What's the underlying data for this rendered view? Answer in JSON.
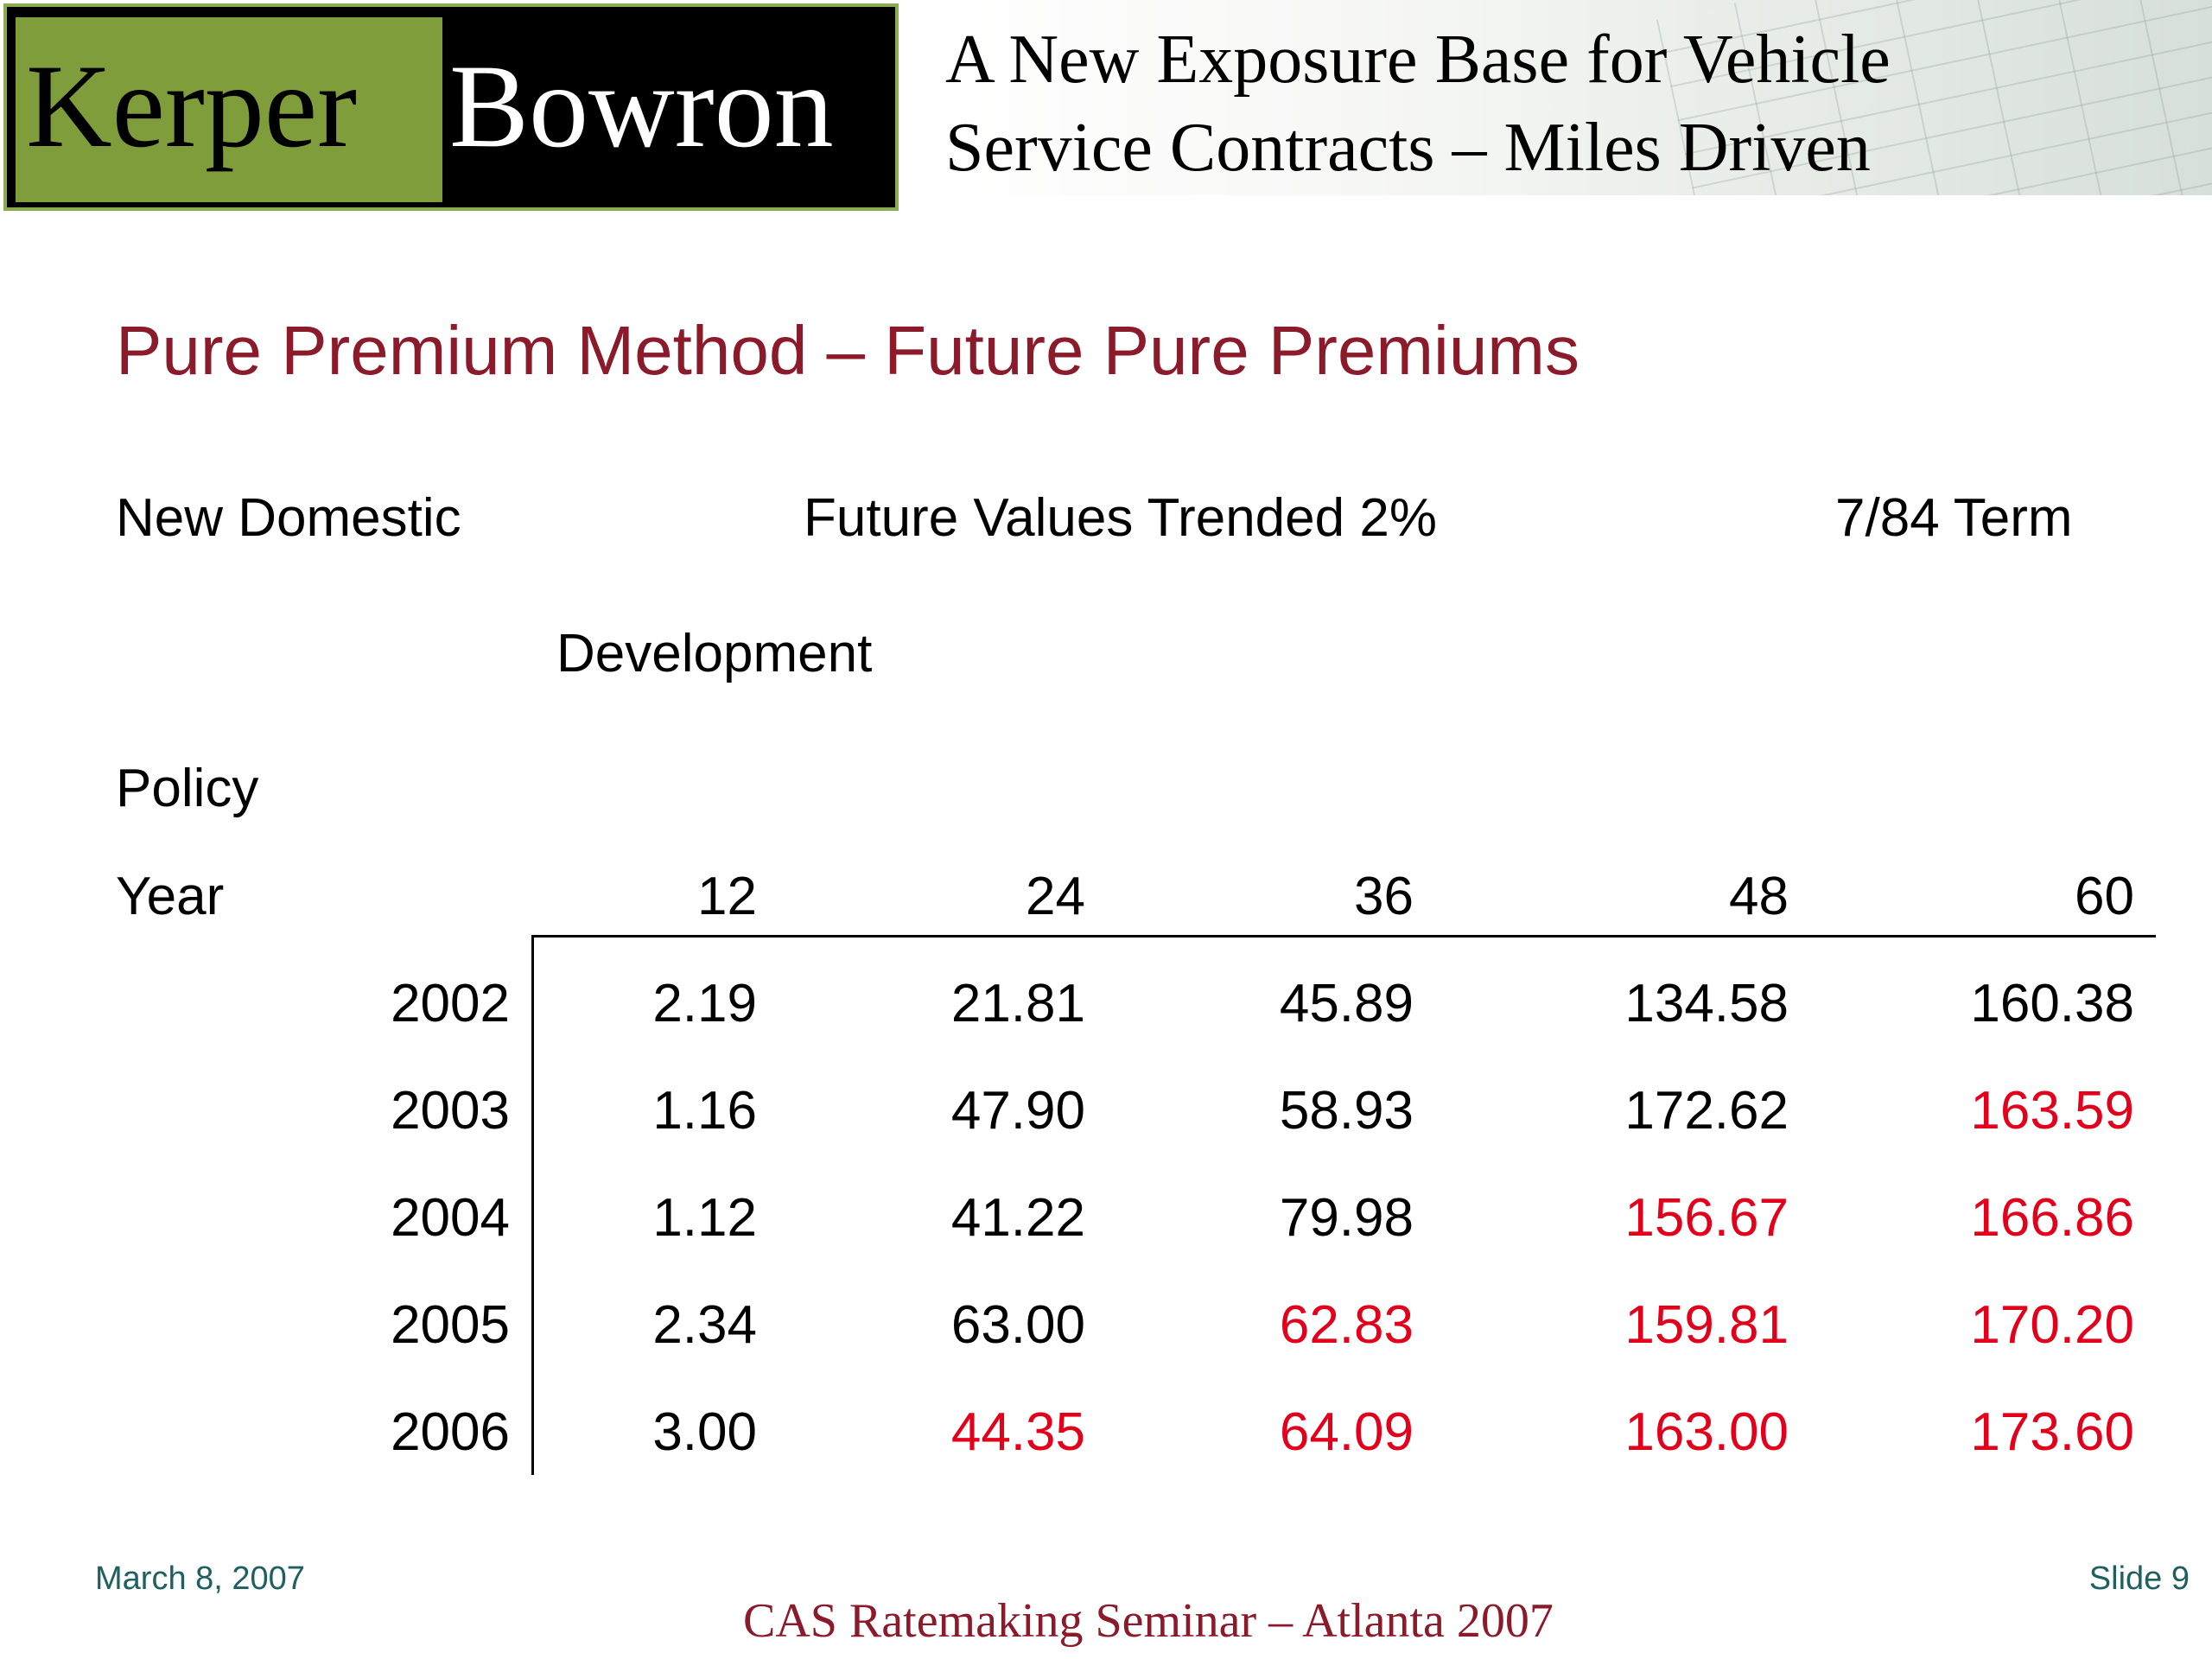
{
  "header": {
    "logo_left": "Kerper",
    "logo_right": "Bowron",
    "title_line1": "A New Exposure Base for Vehicle",
    "title_line2": "Service Contracts – Miles Driven"
  },
  "slide": {
    "title": "Pure Premium Method –  Future Pure  Premiums",
    "labels": {
      "domestic": "New Domestic",
      "future": "Future Values Trended 2%",
      "term": "7/84 Term",
      "development": "Development",
      "policy": "Policy",
      "year": "Year"
    }
  },
  "table": {
    "columns": [
      "12",
      "24",
      "36",
      "48",
      "60"
    ],
    "rows": [
      {
        "year": "2002",
        "values": [
          "2.19",
          "21.81",
          "45.89",
          "134.58",
          "160.38"
        ],
        "red": [
          false,
          false,
          false,
          false,
          false
        ]
      },
      {
        "year": "2003",
        "values": [
          "1.16",
          "47.90",
          "58.93",
          "172.62",
          "163.59"
        ],
        "red": [
          false,
          false,
          false,
          false,
          true
        ]
      },
      {
        "year": "2004",
        "values": [
          "1.12",
          "41.22",
          "79.98",
          "156.67",
          "166.86"
        ],
        "red": [
          false,
          false,
          false,
          true,
          true
        ]
      },
      {
        "year": "2005",
        "values": [
          "2.34",
          "63.00",
          "62.83",
          "159.81",
          "170.20"
        ],
        "red": [
          false,
          false,
          true,
          true,
          true
        ]
      },
      {
        "year": "2006",
        "values": [
          "3.00",
          "44.35",
          "64.09",
          "163.00",
          "173.60"
        ],
        "red": [
          false,
          true,
          true,
          true,
          true
        ]
      }
    ],
    "colors": {
      "normal": "#000000",
      "projected": "#e3001b"
    }
  },
  "footer": {
    "date": "March 8, 2007",
    "slide_label": "Slide   9",
    "seminar": "CAS Ratemaking Seminar – Atlanta 2007"
  },
  "colors": {
    "title": "#8b1a2b",
    "logo_green": "#7f9d3a",
    "footer_text": "#1f5f5f"
  }
}
